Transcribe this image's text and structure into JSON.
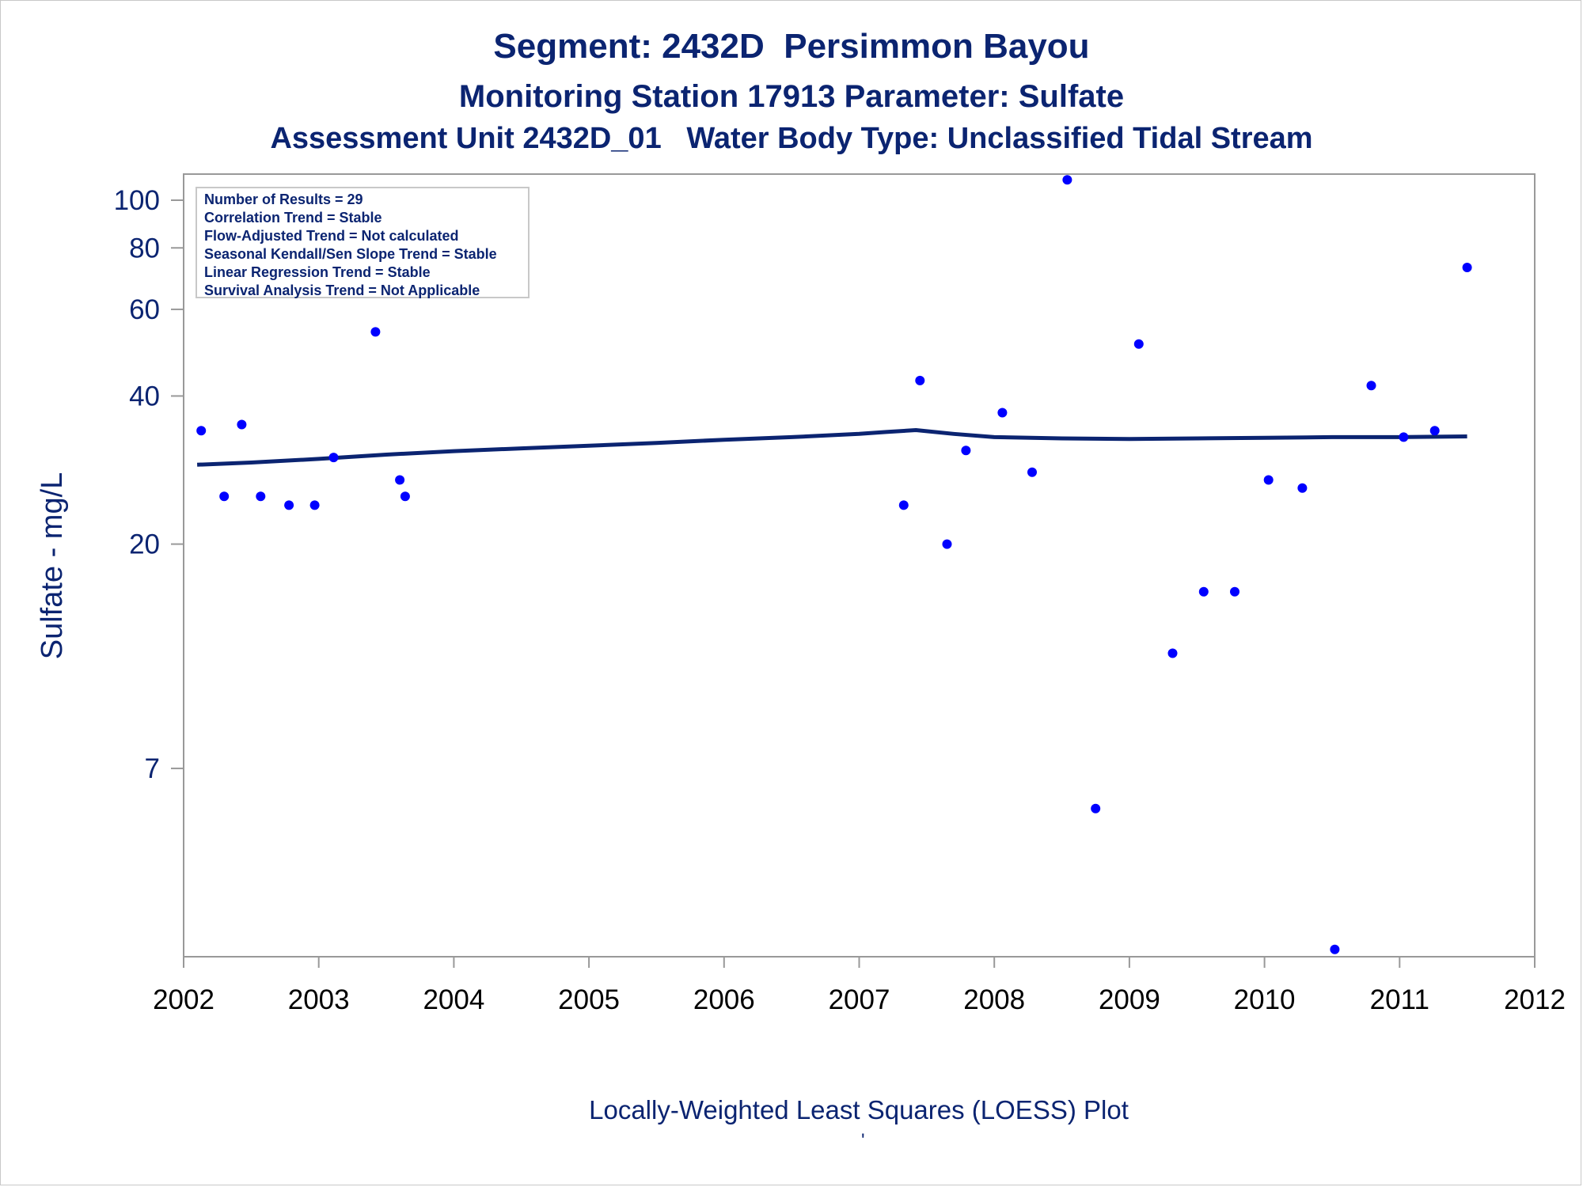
{
  "titles": {
    "line1": "Segment: 2432D  Persimmon Bayou",
    "line2": "Monitoring Station 17913 Parameter: Sulfate",
    "line3": "Assessment Unit 2432D_01   Water Body Type: Unclassified Tidal Stream"
  },
  "legend_box": {
    "lines": [
      "Number of Results = 29",
      "Correlation Trend = Stable",
      "Flow-Adjusted Trend = Not calculated",
      "Seasonal Kendall/Sen Slope Trend = Stable",
      "Linear Regression Trend = Stable",
      "Survival Analysis Trend = Not Applicable"
    ]
  },
  "footer": {
    "label": "Locally-Weighted Least Squares (LOESS) Plot",
    "mark": "'"
  },
  "colors": {
    "text": "#0b2471",
    "points": "#0000ff",
    "loess_line": "#0b2471",
    "axis": "#999999"
  },
  "chart_data": {
    "type": "scatter",
    "title": "Segment: 2432D  Persimmon Bayou",
    "xlabel": "",
    "ylabel": "Sulfate - mg/L",
    "yscale": "log",
    "xlim": [
      2002.0,
      2012.0
    ],
    "ylim": [
      2.9,
      113
    ],
    "x_ticks": [
      2002,
      2003,
      2004,
      2005,
      2006,
      2007,
      2008,
      2009,
      2010,
      2011,
      2012
    ],
    "y_ticks": [
      7,
      20,
      40,
      60,
      80,
      100
    ],
    "grid": false,
    "series": [
      {
        "kind": "points",
        "x": [
          2002.13,
          2002.3,
          2002.43,
          2002.57,
          2002.78,
          2002.97,
          2003.11,
          2003.42,
          2003.6,
          2003.64,
          2007.33,
          2007.45,
          2007.65,
          2007.79,
          2008.06,
          2008.28,
          2008.54,
          2008.75,
          2009.07,
          2009.32,
          2009.55,
          2009.78,
          2010.03,
          2010.28,
          2010.52,
          2010.79,
          2011.03,
          2011.26,
          2011.5
        ],
        "y": [
          34,
          25,
          35,
          25,
          24,
          24,
          30,
          54,
          27,
          25,
          24,
          43,
          20,
          31,
          37,
          28,
          110,
          5.8,
          51,
          12,
          16,
          16,
          27,
          26,
          3.0,
          42,
          33,
          34,
          73
        ]
      },
      {
        "kind": "line",
        "x": [
          2002.1,
          2002.5,
          2003.0,
          2003.5,
          2004.0,
          2004.5,
          2005.0,
          2005.5,
          2006.0,
          2006.5,
          2007.0,
          2007.2,
          2007.42,
          2007.7,
          2008.0,
          2008.5,
          2009.0,
          2009.5,
          2010.0,
          2010.5,
          2011.0,
          2011.5
        ],
        "y": [
          29.0,
          29.3,
          29.8,
          30.4,
          30.9,
          31.3,
          31.7,
          32.1,
          32.6,
          33.0,
          33.5,
          33.8,
          34.1,
          33.5,
          33.0,
          32.8,
          32.7,
          32.8,
          32.9,
          33.0,
          33.0,
          33.1
        ]
      }
    ]
  }
}
